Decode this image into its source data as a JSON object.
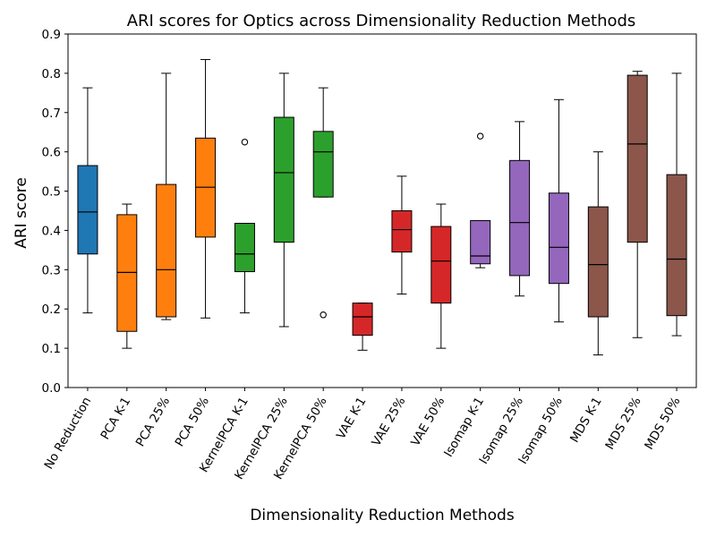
{
  "chart_data": {
    "type": "boxplot",
    "title": "ARI scores for Optics across Dimensionality Reduction Methods",
    "xlabel": "Dimensionality Reduction Methods",
    "ylabel": "ARI score",
    "ylim": [
      0.0,
      0.9
    ],
    "yticks": [
      "0.0",
      "0.1",
      "0.2",
      "0.3",
      "0.4",
      "0.5",
      "0.6",
      "0.7",
      "0.8",
      "0.9"
    ],
    "grid": false,
    "colors": {
      "No Reduction": "#1f77b4",
      "PCA": "#ff7f0e",
      "KernelPCA": "#2ca02c",
      "VAE": "#d62728",
      "Isomap": "#9467bd",
      "MDS": "#8c564b"
    },
    "categories": [
      "No Reduction",
      "PCA K-1",
      "PCA 25%",
      "PCA 50%",
      "KernelPCA K-1",
      "KernelPCA 25%",
      "KernelPCA 50%",
      "VAE K-1",
      "VAE 25%",
      "VAE 50%",
      "Isomap K-1",
      "Isomap 25%",
      "Isomap 50%",
      "MDS K-1",
      "MDS 25%",
      "MDS 50%"
    ],
    "boxes": [
      {
        "label": "No Reduction",
        "group": "No Reduction",
        "whisker_low": 0.19,
        "q1": 0.34,
        "median": 0.447,
        "q3": 0.565,
        "whisker_high": 0.763,
        "outliers": []
      },
      {
        "label": "PCA K-1",
        "group": "PCA",
        "whisker_low": 0.1,
        "q1": 0.143,
        "median": 0.293,
        "q3": 0.44,
        "whisker_high": 0.467,
        "outliers": []
      },
      {
        "label": "PCA 25%",
        "group": "PCA",
        "whisker_low": 0.173,
        "q1": 0.18,
        "median": 0.3,
        "q3": 0.517,
        "whisker_high": 0.8,
        "outliers": []
      },
      {
        "label": "PCA 50%",
        "group": "PCA",
        "whisker_low": 0.177,
        "q1": 0.383,
        "median": 0.51,
        "q3": 0.635,
        "whisker_high": 0.835,
        "outliers": []
      },
      {
        "label": "KernelPCA K-1",
        "group": "KernelPCA",
        "whisker_low": 0.19,
        "q1": 0.295,
        "median": 0.34,
        "q3": 0.418,
        "whisker_high": 0.418,
        "outliers": [
          0.625
        ]
      },
      {
        "label": "KernelPCA 25%",
        "group": "KernelPCA",
        "whisker_low": 0.155,
        "q1": 0.37,
        "median": 0.547,
        "q3": 0.688,
        "whisker_high": 0.8,
        "outliers": []
      },
      {
        "label": "KernelPCA 50%",
        "group": "KernelPCA",
        "whisker_low": 0.485,
        "q1": 0.485,
        "median": 0.6,
        "q3": 0.652,
        "whisker_high": 0.763,
        "outliers": [
          0.185
        ]
      },
      {
        "label": "VAE K-1",
        "group": "VAE",
        "whisker_low": 0.095,
        "q1": 0.133,
        "median": 0.18,
        "q3": 0.215,
        "whisker_high": 0.215,
        "outliers": []
      },
      {
        "label": "VAE 25%",
        "group": "VAE",
        "whisker_low": 0.238,
        "q1": 0.345,
        "median": 0.402,
        "q3": 0.45,
        "whisker_high": 0.538,
        "outliers": []
      },
      {
        "label": "VAE 50%",
        "group": "VAE",
        "whisker_low": 0.1,
        "q1": 0.215,
        "median": 0.322,
        "q3": 0.41,
        "whisker_high": 0.467,
        "outliers": []
      },
      {
        "label": "Isomap K-1",
        "group": "Isomap",
        "whisker_low": 0.305,
        "q1": 0.315,
        "median": 0.335,
        "q3": 0.425,
        "whisker_high": 0.425,
        "outliers": [
          0.64
        ]
      },
      {
        "label": "Isomap 25%",
        "group": "Isomap",
        "whisker_low": 0.233,
        "q1": 0.285,
        "median": 0.42,
        "q3": 0.578,
        "whisker_high": 0.677,
        "outliers": []
      },
      {
        "label": "Isomap 50%",
        "group": "Isomap",
        "whisker_low": 0.167,
        "q1": 0.265,
        "median": 0.357,
        "q3": 0.495,
        "whisker_high": 0.733,
        "outliers": []
      },
      {
        "label": "MDS K-1",
        "group": "MDS",
        "whisker_low": 0.083,
        "q1": 0.18,
        "median": 0.313,
        "q3": 0.46,
        "whisker_high": 0.6,
        "outliers": []
      },
      {
        "label": "MDS 25%",
        "group": "MDS",
        "whisker_low": 0.127,
        "q1": 0.37,
        "median": 0.62,
        "q3": 0.795,
        "whisker_high": 0.805,
        "outliers": []
      },
      {
        "label": "MDS 50%",
        "group": "MDS",
        "whisker_low": 0.132,
        "q1": 0.183,
        "median": 0.327,
        "q3": 0.542,
        "whisker_high": 0.8,
        "outliers": []
      }
    ]
  }
}
